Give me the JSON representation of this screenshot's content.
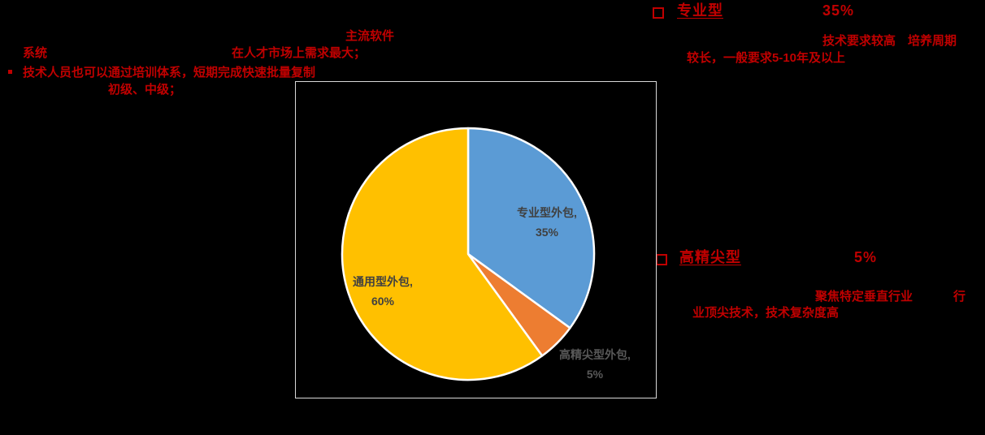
{
  "slide": {
    "background_color": "#000000",
    "accent_red": "#C00000",
    "chart_border_color": "#D9D9D9"
  },
  "annotations": {
    "top_line": "主流软件",
    "left_line1_a": "系统",
    "left_line1_b": "在人才市场上需求最大；",
    "left_bullet": "▪",
    "left_line2": "技术人员也可以通过培训体系，短期完成快速批量复制",
    "left_line3": "初级、中级；"
  },
  "callouts": [
    {
      "bullet": "□",
      "title": "专业型",
      "value": "35%",
      "desc_line1": "技术要求较高　培养周期",
      "desc_line2": "较长，一般要求5-10年及以上"
    },
    {
      "bullet": "□",
      "title": "高精尖型",
      "value": "5%",
      "desc_line1a": "聚焦特定垂直行业",
      "desc_line1b": "行",
      "desc_line2": "业顶尖技术，技术复杂度高"
    }
  ],
  "chart_data": {
    "type": "pie",
    "title": "",
    "start_angle_deg": 0,
    "direction": "clockwise",
    "stroke_color": "#FFFFFF",
    "categories": [
      "专业型外包",
      "高精尖型外包",
      "通用型外包"
    ],
    "values": [
      35,
      5,
      60
    ],
    "slices": [
      {
        "id": "professional",
        "name": "专业型外包",
        "value": 35,
        "label": "专业型外包,",
        "value_label": "35%",
        "color": "#5B9BD5",
        "label_color": "#404040",
        "label_position": "inside"
      },
      {
        "id": "high-end",
        "name": "高精尖型外包",
        "value": 5,
        "label": "高精尖型外包,",
        "value_label": "5%",
        "color": "#ED7D31",
        "label_color": "#595959",
        "label_position": "outside"
      },
      {
        "id": "general",
        "name": "通用型外包",
        "value": 60,
        "label": "通用型外包,",
        "value_label": "60%",
        "color": "#FFC000",
        "label_color": "#404040",
        "label_position": "inside"
      }
    ]
  }
}
